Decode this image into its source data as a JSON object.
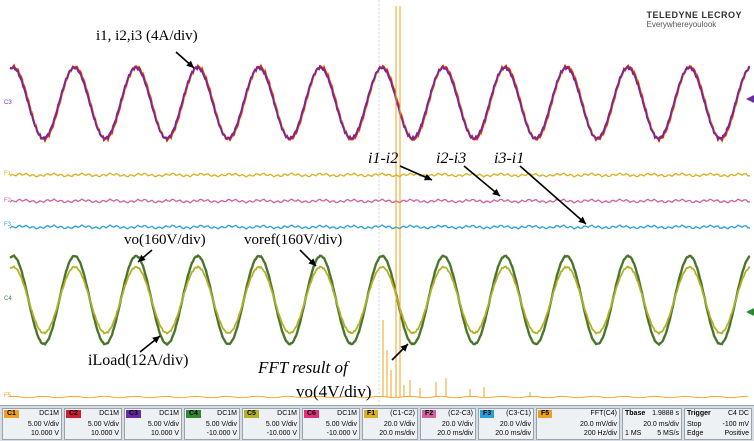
{
  "brand": {
    "name": "TELEDYNE LECROY",
    "tagline": "Everywhereyoulook"
  },
  "annotations": {
    "currents": "i1, i2,i3 (4A/div)",
    "diff12": "i1-i2",
    "diff23": "i2-i3",
    "diff31": "i3-i1",
    "vo": "vo(160V/div)",
    "voref": "voref(160V/div)",
    "iload": "iLoad(12A/div)",
    "fft_line1": "FFT result of",
    "fft_line2": "vo(4V/div)"
  },
  "trace_markers": {
    "c3": "C3",
    "f1": "F1",
    "f2": "F2",
    "f3": "F3",
    "c4": "C4",
    "f5": "F5"
  },
  "colors": {
    "c1": "#f0a020",
    "c2": "#d02030",
    "c3": "#6a2aa8",
    "c4": "#2f8a2f",
    "c5": "#b5b02a",
    "c6": "#e0307a",
    "f1": "#d8b020",
    "f2": "#d060a0",
    "f3": "#2aa0d8",
    "f5": "#f0a020"
  },
  "channels": [
    {
      "label": "C1",
      "coupling": "DC1M",
      "scale": "5.00 V/div",
      "offset": "10.000 V"
    },
    {
      "label": "C2",
      "coupling": "DC1M",
      "scale": "5.00 V/div",
      "offset": "10.000 V"
    },
    {
      "label": "C3",
      "coupling": "DC1M",
      "scale": "5.00 V/div",
      "offset": "10.000 V"
    },
    {
      "label": "C4",
      "coupling": "DC1M",
      "scale": "5.00 V/div",
      "offset": "-10.000 V"
    },
    {
      "label": "C5",
      "coupling": "DC1M",
      "scale": "5.00 V/div",
      "offset": "-10.000 V"
    },
    {
      "label": "C6",
      "coupling": "DC1M",
      "scale": "5.00 V/div",
      "offset": "-10.000 V"
    },
    {
      "label": "F1",
      "coupling": "(C1-C2)",
      "scale": "20.0 V/div",
      "offset": "20.0 ms/div"
    },
    {
      "label": "F2",
      "coupling": "(C2-C3)",
      "scale": "20.0 V/div",
      "offset": "20.0 ms/div"
    },
    {
      "label": "F3",
      "coupling": "(C3-C1)",
      "scale": "20.0 V/div",
      "offset": "20.0 ms/div"
    },
    {
      "label": "F5",
      "coupling": "FFT(C4)",
      "scale": "20.0 mV/div",
      "offset": "200 Hz/div"
    }
  ],
  "timebase": {
    "label": "Tbase",
    "value": "1.9888 s",
    "div": "20.0 ms/div",
    "samples": "1 MS",
    "rate": "5 MS/s"
  },
  "trigger": {
    "label": "Trigger",
    "source": "C4 DC",
    "mode": "Stop",
    "level": "-100 mV",
    "type": "Edge",
    "slope": "Positive"
  }
}
